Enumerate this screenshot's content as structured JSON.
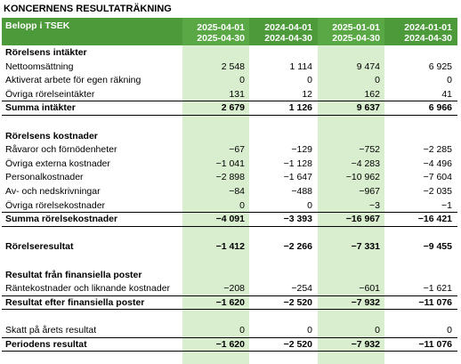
{
  "title": "KONCERNENS RESULTATRÄKNING",
  "table": {
    "header": {
      "label": "Belopp i TSEK",
      "columns": [
        [
          "2025-04-01",
          "2025-04-30"
        ],
        [
          "2024-04-01",
          "2024-04-30"
        ],
        [
          "2025-01-01",
          "2025-04-30"
        ],
        [
          "2024-01-01",
          "2024-04-30"
        ]
      ]
    },
    "highlight_columns": [
      0,
      2
    ],
    "rows": [
      {
        "kind": "section",
        "label": "Rörelsens intäkter"
      },
      {
        "kind": "item",
        "label": "Nettoomsättning",
        "values": [
          "2 548",
          "1 114",
          "9 474",
          "6 925"
        ]
      },
      {
        "kind": "item",
        "label": "Aktiverat arbete för egen räkning",
        "values": [
          "0",
          "0",
          "0",
          "0"
        ]
      },
      {
        "kind": "item",
        "label": "Övriga rörelseintäkter",
        "values": [
          "131",
          "12",
          "162",
          "41"
        ]
      },
      {
        "kind": "total",
        "label": "Summa intäkter",
        "values": [
          "2 679",
          "1 126",
          "9 637",
          "6 966"
        ]
      },
      {
        "kind": "section",
        "label": "Rörelsens kostnader"
      },
      {
        "kind": "item",
        "label": "Råvaror och förnödenheter",
        "values": [
          "−67",
          "−129",
          "−752",
          "−2 285"
        ]
      },
      {
        "kind": "item",
        "label": "Övriga externa kostnader",
        "values": [
          "−1 041",
          "−1 128",
          "−4 283",
          "−4 496"
        ]
      },
      {
        "kind": "item",
        "label": "Personalkostnader",
        "values": [
          "−2 898",
          "−1 647",
          "−10 962",
          "−7 604"
        ]
      },
      {
        "kind": "item",
        "label": "Av- och nedskrivningar",
        "values": [
          "−84",
          "−488",
          "−967",
          "−2 035"
        ]
      },
      {
        "kind": "item",
        "label": "Övriga rörelsekostnader",
        "values": [
          "0",
          "0",
          "−3",
          "−1"
        ]
      },
      {
        "kind": "total",
        "label": "Summa rörelsekostnader",
        "values": [
          "−4 091",
          "−3 393",
          "−16 967",
          "−16 421"
        ]
      },
      {
        "kind": "section",
        "label": "Rörelseresultat",
        "values": [
          "−1 412",
          "−2 266",
          "−7 331",
          "−9 455"
        ]
      },
      {
        "kind": "section",
        "label": "Resultat från finansiella poster"
      },
      {
        "kind": "item",
        "label": "Räntekostnader och liknande kostnader",
        "values": [
          "−208",
          "−254",
          "−601",
          "−1 621"
        ]
      },
      {
        "kind": "total",
        "label": "Resultat efter finansiella poster",
        "values": [
          "−1 620",
          "−2 520",
          "−7 932",
          "−11 076"
        ]
      },
      {
        "kind": "item",
        "label": "Skatt på årets resultat",
        "values": [
          "0",
          "0",
          "0",
          "0"
        ]
      },
      {
        "kind": "total",
        "label": "Periodens resultat",
        "values": [
          "−1 620",
          "−2 520",
          "−7 932",
          "−11 076"
        ]
      }
    ]
  }
}
